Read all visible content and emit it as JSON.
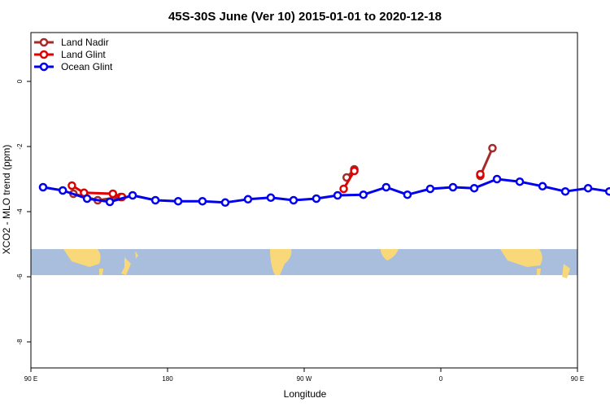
{
  "chart_data": {
    "type": "line",
    "title": "45S-30S June (Ver 10)   2015-01-01 to 2020-12-18",
    "xlabel": "Longitude",
    "ylabel": "XCO2 - MLO trend (ppm)",
    "xlim": [
      90,
      450
    ],
    "ylim": [
      -8.8,
      1.5
    ],
    "x_ticks": [
      {
        "value": 90,
        "label": "90 E"
      },
      {
        "value": 180,
        "label": "180"
      },
      {
        "value": 270,
        "label": "90 W"
      },
      {
        "value": 360,
        "label": "0"
      },
      {
        "value": 450,
        "label": "90 E"
      },
      {
        "value": 540,
        "label": "180"
      }
    ],
    "y_ticks": [
      {
        "value": 0,
        "label": "0"
      },
      {
        "value": -2,
        "label": "-2"
      },
      {
        "value": -4,
        "label": "-4"
      },
      {
        "value": -6,
        "label": "-6"
      },
      {
        "value": -8,
        "label": "-8"
      }
    ],
    "legend_position": "top-left",
    "grid": false,
    "map_band": {
      "y_top": -5.15,
      "y_bottom": -5.95,
      "ocean_color": "#a8bedc",
      "land_color": "#f8d878"
    },
    "series": [
      {
        "name": "Land Nadir",
        "color": "#a52a2a",
        "segments": [
          {
            "x": [
              118,
              134,
              149
            ],
            "y": [
              -3.45,
              -3.65,
              -3.55
            ]
          },
          {
            "x": [
              298,
              303
            ],
            "y": [
              -2.95,
              -2.7
            ]
          },
          {
            "x": [
              386,
              394
            ],
            "y": [
              -2.9,
              -2.05
            ]
          },
          {
            "x": [
              477,
              492,
              507
            ],
            "y": [
              -3.45,
              -3.65,
              -3.55
            ]
          }
        ]
      },
      {
        "name": "Land Glint",
        "color": "#e00000",
        "segments": [
          {
            "x": [
              117,
              125,
              144,
              150
            ],
            "y": [
              -3.2,
              -3.42,
              -3.45,
              -3.55
            ]
          },
          {
            "x": [
              296,
              303
            ],
            "y": [
              -3.3,
              -2.75
            ]
          },
          {
            "x": [
              386
            ],
            "y": [
              -2.85
            ]
          },
          {
            "x": [
              476,
              482,
              501,
              508
            ],
            "y": [
              -3.2,
              -3.42,
              -3.45,
              -3.55
            ]
          }
        ]
      },
      {
        "name": "Ocean Glint",
        "color": "#0000ee",
        "segments": [
          {
            "x": [
              98,
              111,
              127,
              142,
              157,
              172,
              187,
              203,
              218,
              233,
              248,
              263,
              278,
              292,
              309,
              324,
              338,
              353,
              368,
              382,
              397,
              412,
              427,
              442,
              457,
              471,
              486,
              501,
              516,
              531
            ],
            "y": [
              -3.25,
              -3.35,
              -3.6,
              -3.7,
              -3.5,
              -3.65,
              -3.68,
              -3.68,
              -3.72,
              -3.62,
              -3.57,
              -3.65,
              -3.6,
              -3.5,
              -3.48,
              -3.25,
              -3.48,
              -3.3,
              -3.25,
              -3.28,
              -3.0,
              -3.08,
              -3.22,
              -3.38,
              -3.28,
              -3.38,
              -3.6,
              -3.7,
              -3.5,
              -3.65
            ]
          }
        ]
      }
    ]
  }
}
